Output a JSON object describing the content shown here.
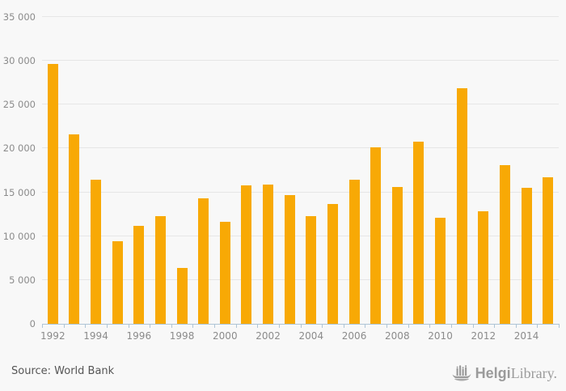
{
  "chart_data": {
    "type": "bar",
    "title": "",
    "categories": [
      "1992",
      "1993",
      "1994",
      "1995",
      "1996",
      "1997",
      "1998",
      "1999",
      "2000",
      "2001",
      "2002",
      "2003",
      "2004",
      "2005",
      "2006",
      "2007",
      "2008",
      "2009",
      "2010",
      "2011",
      "2012",
      "2013",
      "2014",
      "2015"
    ],
    "values": [
      29600,
      21600,
      16400,
      9400,
      11200,
      12300,
      6400,
      14300,
      11600,
      15800,
      15900,
      14700,
      12300,
      13700,
      16400,
      20100,
      15600,
      20800,
      12100,
      26900,
      12800,
      18100,
      15500,
      16700
    ],
    "ylim": [
      0,
      35000
    ],
    "ytick_values": [
      0,
      5000,
      10000,
      15000,
      20000,
      25000,
      30000,
      35000
    ],
    "ytick_labels": [
      "0",
      "5 000",
      "10 000",
      "15 000",
      "20 000",
      "25 000",
      "30 000",
      "35 000"
    ],
    "x_label_every": 2,
    "xtick_labels_shown": [
      "1992",
      "1994",
      "1996",
      "1998",
      "2000",
      "2002",
      "2004",
      "2006",
      "2008",
      "2010",
      "2012",
      "2014"
    ],
    "grid": true,
    "legend": false,
    "xlabel": "",
    "ylabel": ""
  },
  "footer": {
    "source": "Source: World Bank"
  },
  "branding": {
    "logo_icon": "viking-ship-bars-icon",
    "name_bold": "Helgi",
    "name_serif": "Library."
  },
  "colors": {
    "bar": "#F8A905",
    "background": "#F8F8F8",
    "gridline": "#E6E6E6",
    "axis_line": "#AFC5D6",
    "tick_label": "#8B8B8B",
    "source_text": "#555555",
    "logo": "#9B9B9B"
  }
}
